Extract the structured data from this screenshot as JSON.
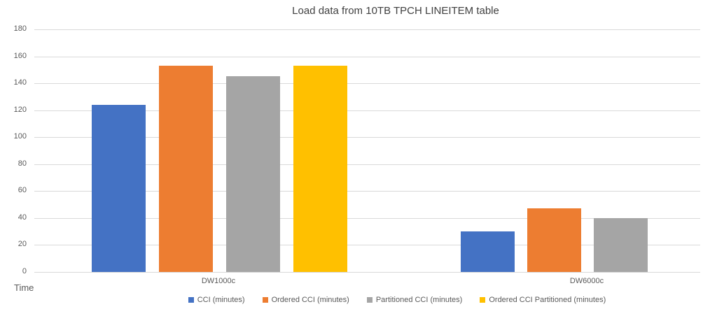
{
  "chart_data": {
    "type": "bar",
    "title": "Load data from 10TB TPCH LINEITEM table",
    "categories": [
      "DW1000c",
      "DW6000c"
    ],
    "series": [
      {
        "name": "CCI (minutes)",
        "color": "#4472C4",
        "values": [
          124,
          30
        ]
      },
      {
        "name": "Ordered CCI (minutes)",
        "color": "#ED7D31",
        "values": [
          153,
          47
        ]
      },
      {
        "name": "Partitioned CCI (minutes)",
        "color": "#A5A5A5",
        "values": [
          145,
          40
        ]
      },
      {
        "name": "Ordered CCI Partitioned (minutes)",
        "color": "#FFC000",
        "values": [
          153,
          0
        ]
      }
    ],
    "xlabel": "",
    "ylabel": "Time",
    "ylim": [
      0,
      180
    ],
    "yticks": [
      0,
      20,
      40,
      60,
      80,
      100,
      120,
      140,
      160,
      180
    ],
    "grid": true,
    "legend_position": "bottom",
    "gridline_color": "#d9d9d9",
    "text_color": "#595959",
    "title_color": "#404040"
  }
}
